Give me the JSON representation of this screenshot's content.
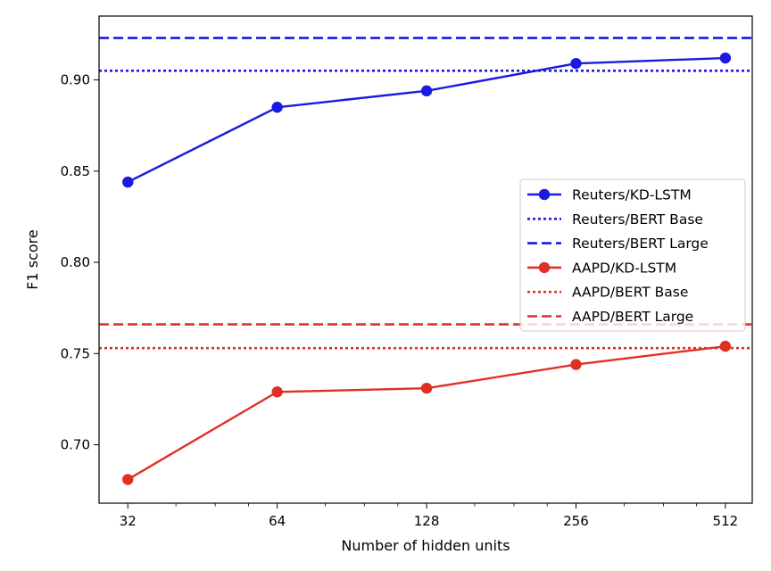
{
  "chart_data": {
    "type": "line",
    "title": "",
    "xlabel": "Number of hidden units",
    "ylabel": "F1 score",
    "xscale": "log2",
    "x": [
      32,
      64,
      128,
      256,
      512
    ],
    "x_tick_labels": [
      "32",
      "64",
      "128",
      "256",
      "512"
    ],
    "xlim": [
      28,
      580
    ],
    "ylim": [
      0.668,
      0.935
    ],
    "y_ticks": [
      0.7,
      0.75,
      0.8,
      0.85,
      0.9
    ],
    "y_tick_labels": [
      "0.70",
      "0.75",
      "0.80",
      "0.85",
      "0.90"
    ],
    "grid": false,
    "legend_position": "center-right",
    "series": [
      {
        "name": "Reuters/KD-LSTM",
        "kind": "line-marker",
        "color": "#1a1ae0",
        "values": [
          0.844,
          0.885,
          0.894,
          0.909,
          0.912
        ]
      },
      {
        "name": "Reuters/BERT Base",
        "kind": "hline",
        "style": "dotted",
        "color": "#1a1ae0",
        "value": 0.905
      },
      {
        "name": "Reuters/BERT Large",
        "kind": "hline",
        "style": "dashed",
        "color": "#1a1ae0",
        "value": 0.923
      },
      {
        "name": "AAPD/KD-LSTM",
        "kind": "line-marker",
        "color": "#e03025",
        "values": [
          0.681,
          0.729,
          0.731,
          0.744,
          0.754
        ]
      },
      {
        "name": "AAPD/BERT Base",
        "kind": "hline",
        "style": "dotted",
        "color": "#e03025",
        "value": 0.753
      },
      {
        "name": "AAPD/BERT Large",
        "kind": "hline",
        "style": "dashed",
        "color": "#e03025",
        "value": 0.766
      }
    ]
  }
}
